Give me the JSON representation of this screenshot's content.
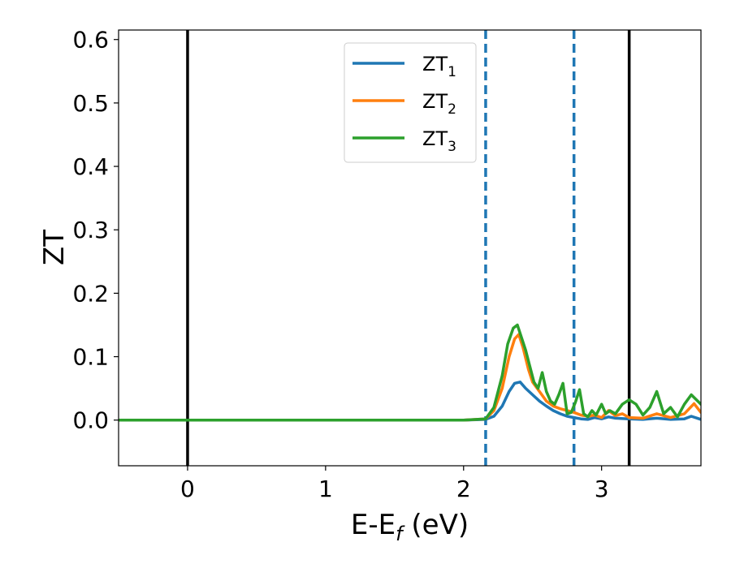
{
  "chart_data": {
    "type": "line",
    "xlabel": "E-E",
    "xlabel_sub": "f",
    "xlabel_unit": " (eV)",
    "ylabel": "ZT",
    "xlim": [
      -0.5,
      3.72
    ],
    "ylim": [
      -0.072,
      0.615
    ],
    "xticks": [
      0,
      1,
      2,
      3
    ],
    "xtick_labels": [
      "0",
      "1",
      "2",
      "3"
    ],
    "yticks": [
      0.0,
      0.1,
      0.2,
      0.3,
      0.4,
      0.5,
      0.6
    ],
    "ytick_labels": [
      "0.0",
      "0.1",
      "0.2",
      "0.3",
      "0.4",
      "0.5",
      "0.6"
    ],
    "grid": false,
    "legend_placement": "upper center",
    "vlines": [
      {
        "x": 0.0,
        "color": "#000000",
        "style": "solid"
      },
      {
        "x": 3.2,
        "color": "#000000",
        "style": "solid"
      },
      {
        "x": 2.16,
        "color": "#1f77b4",
        "style": "dashed"
      },
      {
        "x": 2.8,
        "color": "#1f77b4",
        "style": "dashed"
      }
    ],
    "series": [
      {
        "name": "ZT",
        "name_sub": "1",
        "color": "#1f77b4",
        "x": [
          -0.5,
          2.0,
          2.16,
          2.22,
          2.28,
          2.33,
          2.37,
          2.41,
          2.45,
          2.5,
          2.55,
          2.6,
          2.65,
          2.7,
          2.75,
          2.8,
          2.85,
          2.9,
          2.95,
          3.0,
          3.05,
          3.1,
          3.2,
          3.3,
          3.4,
          3.5,
          3.6,
          3.65,
          3.72
        ],
        "y": [
          0.0,
          0.0,
          0.001,
          0.006,
          0.022,
          0.045,
          0.058,
          0.06,
          0.05,
          0.04,
          0.03,
          0.022,
          0.015,
          0.01,
          0.006,
          0.004,
          0.002,
          0.001,
          0.004,
          0.002,
          0.005,
          0.003,
          0.002,
          0.001,
          0.003,
          0.001,
          0.002,
          0.006,
          0.001
        ]
      },
      {
        "name": "ZT",
        "name_sub": "2",
        "color": "#ff7f0e",
        "x": [
          -0.5,
          2.0,
          2.16,
          2.22,
          2.28,
          2.33,
          2.37,
          2.4,
          2.43,
          2.47,
          2.5,
          2.55,
          2.6,
          2.65,
          2.7,
          2.75,
          2.8,
          2.85,
          2.9,
          2.95,
          3.0,
          3.05,
          3.1,
          3.15,
          3.2,
          3.3,
          3.4,
          3.5,
          3.6,
          3.67,
          3.72
        ],
        "y": [
          0.0,
          0.0,
          0.002,
          0.015,
          0.05,
          0.1,
          0.128,
          0.135,
          0.115,
          0.08,
          0.06,
          0.045,
          0.03,
          0.022,
          0.018,
          0.015,
          0.012,
          0.008,
          0.006,
          0.008,
          0.004,
          0.015,
          0.007,
          0.01,
          0.004,
          0.003,
          0.01,
          0.004,
          0.01,
          0.026,
          0.012
        ]
      },
      {
        "name": "ZT",
        "name_sub": "3",
        "color": "#2ca02c",
        "x": [
          -0.5,
          2.0,
          2.16,
          2.22,
          2.28,
          2.32,
          2.36,
          2.39,
          2.42,
          2.45,
          2.48,
          2.51,
          2.54,
          2.57,
          2.6,
          2.63,
          2.66,
          2.69,
          2.72,
          2.75,
          2.78,
          2.81,
          2.84,
          2.87,
          2.9,
          2.93,
          2.96,
          3.0,
          3.03,
          3.06,
          3.1,
          3.15,
          3.2,
          3.25,
          3.3,
          3.35,
          3.4,
          3.45,
          3.5,
          3.55,
          3.6,
          3.65,
          3.72
        ],
        "y": [
          0.0,
          0.0,
          0.002,
          0.02,
          0.07,
          0.12,
          0.145,
          0.15,
          0.13,
          0.11,
          0.085,
          0.06,
          0.05,
          0.075,
          0.045,
          0.03,
          0.025,
          0.04,
          0.058,
          0.01,
          0.012,
          0.028,
          0.048,
          0.01,
          0.005,
          0.015,
          0.008,
          0.025,
          0.01,
          0.015,
          0.01,
          0.025,
          0.032,
          0.025,
          0.008,
          0.02,
          0.045,
          0.01,
          0.02,
          0.005,
          0.025,
          0.04,
          0.025
        ]
      }
    ]
  }
}
